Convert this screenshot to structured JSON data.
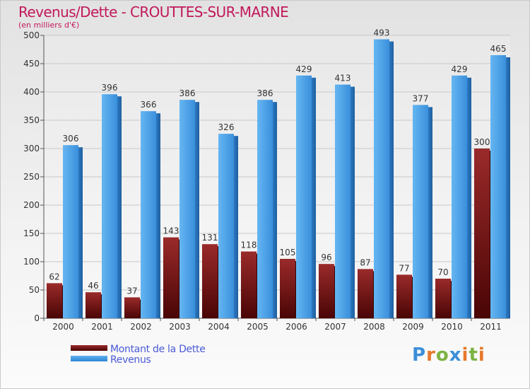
{
  "title": "Revenus/Dette - CROUTTES-SUR-MARNE",
  "subtitle": "(en milliers d'€)",
  "colors": {
    "title": "#c2185b",
    "dette": "#7a1212",
    "revenus": "#3f97e0",
    "legend_text": "#4a5ad6"
  },
  "chart_data": {
    "type": "bar",
    "title": "Revenus/Dette - CROUTTES-SUR-MARNE",
    "subtitle": "(en milliers d'€)",
    "categories": [
      "2000",
      "2001",
      "2002",
      "2003",
      "2004",
      "2005",
      "2006",
      "2007",
      "2008",
      "2009",
      "2010",
      "2011"
    ],
    "series": [
      {
        "name": "Montant de la Dette",
        "values": [
          62,
          46,
          37,
          143,
          131,
          118,
          105,
          96,
          87,
          77,
          70,
          300
        ]
      },
      {
        "name": "Revenus",
        "values": [
          306,
          396,
          366,
          386,
          326,
          386,
          429,
          413,
          493,
          377,
          429,
          465
        ]
      }
    ],
    "ylim": [
      0,
      500
    ],
    "yticks": [
      0,
      50,
      100,
      150,
      200,
      250,
      300,
      350,
      400,
      450,
      500
    ],
    "grid": true,
    "legend_position": "bottom-left"
  },
  "legend": [
    {
      "label": "Montant de la Dette"
    },
    {
      "label": "Revenus"
    }
  ],
  "logo": {
    "text": "Proxiti"
  }
}
